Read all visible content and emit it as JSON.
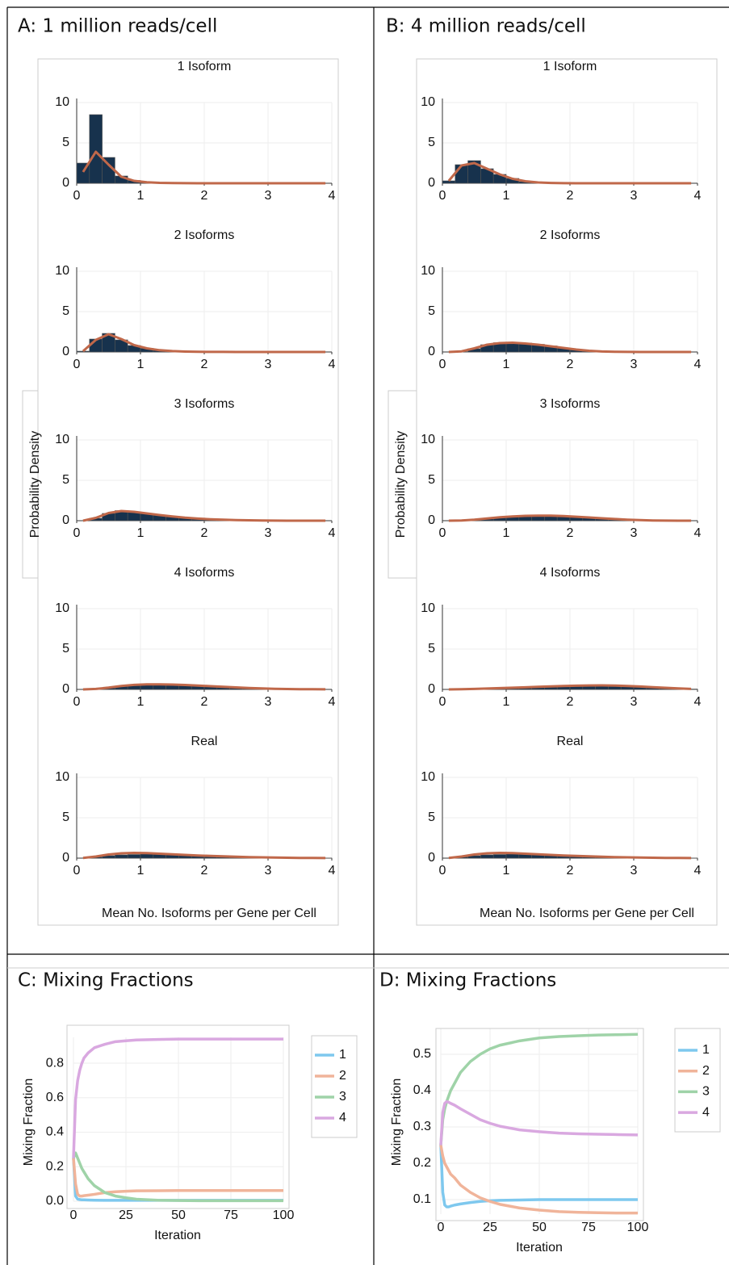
{
  "panels": [
    {
      "title": "A: 1 million reads/cell",
      "ylabel": "Probability Density",
      "xlabel": "Mean No. Isoforms per Gene per Cell"
    },
    {
      "title": "B: 4 million reads/cell",
      "ylabel": "Probability Density",
      "xlabel": "Mean No. Isoforms per Gene per Cell"
    }
  ],
  "chart_data": [
    {
      "type": "histogram",
      "title": "1 Isoform",
      "bins": [
        0,
        0.2,
        0.4,
        0.6,
        0.8,
        1,
        1.2,
        1.4,
        1.6,
        1.8,
        2,
        2.2,
        2.4,
        2.6,
        2.8,
        3,
        3.2,
        3.4,
        3.6,
        3.8,
        4
      ],
      "color": "#17324d",
      "values": [
        2.5,
        8.5,
        3.2,
        0.9,
        0.35,
        0.15,
        0.08,
        0.05,
        0,
        0,
        0,
        0,
        0,
        0,
        0,
        0,
        0,
        0,
        0,
        0
      ],
      "fit": {
        "color": "#c0684a",
        "values": [
          1.4,
          3.9,
          2.3,
          0.8,
          0.3,
          0.12,
          0.05,
          0.02,
          0.01,
          0,
          0,
          0,
          0,
          0,
          0,
          0,
          0,
          0,
          0,
          0
        ]
      },
      "xlim": [
        0,
        4
      ],
      "ylim": [
        0,
        10
      ],
      "xticks": [
        0,
        1,
        2,
        3,
        4
      ],
      "yticks": [
        0,
        5,
        10
      ]
    },
    {
      "type": "histogram",
      "title": "2 Isoforms",
      "bins": [
        0,
        0.2,
        0.4,
        0.6,
        0.8,
        1,
        1.2,
        1.4,
        1.6,
        1.8,
        2,
        2.2,
        2.4,
        2.6,
        2.8,
        3,
        3.2,
        3.4,
        3.6,
        3.8,
        4
      ],
      "color": "#17324d",
      "values": [
        0.1,
        1.6,
        2.3,
        1.5,
        0.8,
        0.45,
        0.25,
        0.12,
        0.06,
        0.03,
        0,
        0,
        0,
        0,
        0,
        0,
        0,
        0,
        0,
        0
      ],
      "fit": {
        "color": "#c0684a",
        "values": [
          0.1,
          1.5,
          2.2,
          1.6,
          0.85,
          0.45,
          0.22,
          0.11,
          0.05,
          0.02,
          0.01,
          0.01,
          0,
          0,
          0,
          0,
          0,
          0,
          0,
          0
        ]
      },
      "xlim": [
        0,
        4
      ],
      "ylim": [
        0,
        10
      ],
      "xticks": [
        0,
        1,
        2,
        3,
        4
      ],
      "yticks": [
        0,
        5,
        10
      ]
    },
    {
      "type": "histogram",
      "title": "3 Isoforms",
      "bins": [
        0,
        0.2,
        0.4,
        0.6,
        0.8,
        1,
        1.2,
        1.4,
        1.6,
        1.8,
        2,
        2.2,
        2.4,
        2.6,
        2.8,
        3,
        3.2,
        3.4,
        3.6,
        3.8,
        4
      ],
      "color": "#17324d",
      "values": [
        0,
        0.3,
        0.9,
        1.25,
        1.1,
        0.9,
        0.7,
        0.5,
        0.35,
        0.25,
        0.18,
        0.12,
        0.08,
        0.05,
        0.02,
        0,
        0,
        0,
        0,
        0
      ],
      "fit": {
        "color": "#c0684a",
        "values": [
          0,
          0.35,
          0.95,
          1.2,
          1.1,
          0.9,
          0.7,
          0.52,
          0.37,
          0.26,
          0.18,
          0.12,
          0.08,
          0.05,
          0.03,
          0.01,
          0,
          0,
          0,
          0
        ]
      },
      "xlim": [
        0,
        4
      ],
      "ylim": [
        0,
        10
      ],
      "xticks": [
        0,
        1,
        2,
        3,
        4
      ],
      "yticks": [
        0,
        5,
        10
      ]
    },
    {
      "type": "histogram",
      "title": "4 Isoforms",
      "bins": [
        0,
        0.2,
        0.4,
        0.6,
        0.8,
        1,
        1.2,
        1.4,
        1.6,
        1.8,
        2,
        2.2,
        2.4,
        2.6,
        2.8,
        3,
        3.2,
        3.4,
        3.6,
        3.8,
        4
      ],
      "color": "#17324d",
      "values": [
        0,
        0.05,
        0.2,
        0.4,
        0.55,
        0.6,
        0.62,
        0.6,
        0.55,
        0.48,
        0.4,
        0.32,
        0.25,
        0.18,
        0.12,
        0.08,
        0.05,
        0.03,
        0.02,
        0
      ],
      "fit": {
        "color": "#c0684a",
        "values": [
          0,
          0.06,
          0.22,
          0.42,
          0.56,
          0.62,
          0.63,
          0.6,
          0.55,
          0.48,
          0.4,
          0.32,
          0.25,
          0.18,
          0.12,
          0.08,
          0.05,
          0.03,
          0.02,
          0.01
        ]
      },
      "xlim": [
        0,
        4
      ],
      "ylim": [
        0,
        10
      ],
      "xticks": [
        0,
        1,
        2,
        3,
        4
      ],
      "yticks": [
        0,
        5,
        10
      ]
    },
    {
      "type": "histogram",
      "title": "Real",
      "bins": [
        0,
        0.2,
        0.4,
        0.6,
        0.8,
        1,
        1.2,
        1.4,
        1.6,
        1.8,
        2,
        2.2,
        2.4,
        2.6,
        2.8,
        3,
        3.2,
        3.4,
        3.6,
        3.8,
        4
      ],
      "color": "#17324d",
      "values": [
        0,
        0.15,
        0.3,
        0.4,
        0.45,
        0.5,
        0.5,
        0.48,
        0.45,
        0.4,
        0.35,
        0.3,
        0.25,
        0.2,
        0.15,
        0.12,
        0.08,
        0.05,
        0.03,
        0.02
      ],
      "fit": {
        "color": "#c0684a",
        "values": [
          0.02,
          0.2,
          0.45,
          0.6,
          0.65,
          0.62,
          0.55,
          0.47,
          0.4,
          0.33,
          0.27,
          0.22,
          0.17,
          0.13,
          0.1,
          0.07,
          0.05,
          0.03,
          0.02,
          0.01
        ]
      },
      "xlim": [
        0,
        4
      ],
      "ylim": [
        0,
        10
      ],
      "xticks": [
        0,
        1,
        2,
        3,
        4
      ],
      "yticks": [
        0,
        5,
        10
      ]
    },
    {
      "type": "histogram",
      "title": "1 Isoform",
      "bins": [
        0,
        0.2,
        0.4,
        0.6,
        0.8,
        1,
        1.2,
        1.4,
        1.6,
        1.8,
        2,
        2.2,
        2.4,
        2.6,
        2.8,
        3,
        3.2,
        3.4,
        3.6,
        3.8,
        4
      ],
      "color": "#17324d",
      "values": [
        0.3,
        2.3,
        2.8,
        1.8,
        1.1,
        0.6,
        0.2,
        0.05,
        0,
        0,
        0,
        0,
        0,
        0,
        0,
        0,
        0,
        0,
        0,
        0
      ],
      "fit": {
        "color": "#c0684a",
        "values": [
          0.3,
          2.2,
          2.5,
          1.8,
          1.1,
          0.55,
          0.25,
          0.1,
          0.04,
          0.01,
          0,
          0,
          0,
          0,
          0,
          0,
          0,
          0,
          0,
          0
        ]
      },
      "xlim": [
        0,
        4
      ],
      "ylim": [
        0,
        10
      ],
      "xticks": [
        0,
        1,
        2,
        3,
        4
      ],
      "yticks": [
        0,
        5,
        10
      ]
    },
    {
      "type": "histogram",
      "title": "2 Isoforms",
      "bins": [
        0,
        0.2,
        0.4,
        0.6,
        0.8,
        1,
        1.2,
        1.4,
        1.6,
        1.8,
        2,
        2.2,
        2.4,
        2.6,
        2.8,
        3,
        3.2,
        3.4,
        3.6,
        3.8,
        4
      ],
      "color": "#17324d",
      "values": [
        0,
        0.05,
        0.4,
        0.9,
        1.15,
        1.15,
        1.1,
        0.95,
        0.75,
        0.5,
        0.25,
        0.1,
        0.03,
        0,
        0,
        0,
        0,
        0,
        0,
        0
      ],
      "fit": {
        "color": "#c0684a",
        "values": [
          0,
          0.08,
          0.45,
          0.9,
          1.1,
          1.15,
          1.05,
          0.9,
          0.7,
          0.5,
          0.3,
          0.15,
          0.06,
          0.02,
          0.01,
          0,
          0,
          0,
          0,
          0
        ]
      },
      "xlim": [
        0,
        4
      ],
      "ylim": [
        0,
        10
      ],
      "xticks": [
        0,
        1,
        2,
        3,
        4
      ],
      "yticks": [
        0,
        5,
        10
      ]
    },
    {
      "type": "histogram",
      "title": "3 Isoforms",
      "bins": [
        0,
        0.2,
        0.4,
        0.6,
        0.8,
        1,
        1.2,
        1.4,
        1.6,
        1.8,
        2,
        2.2,
        2.4,
        2.6,
        2.8,
        3,
        3.2,
        3.4,
        3.6,
        3.8,
        4
      ],
      "color": "#17324d",
      "values": [
        0,
        0.02,
        0.1,
        0.25,
        0.4,
        0.5,
        0.6,
        0.65,
        0.65,
        0.6,
        0.5,
        0.4,
        0.3,
        0.2,
        0.12,
        0.06,
        0.03,
        0.01,
        0,
        0
      ],
      "fit": {
        "color": "#c0684a",
        "values": [
          0,
          0.03,
          0.12,
          0.27,
          0.42,
          0.53,
          0.6,
          0.63,
          0.62,
          0.57,
          0.49,
          0.4,
          0.3,
          0.21,
          0.13,
          0.07,
          0.03,
          0.01,
          0,
          0
        ]
      },
      "xlim": [
        0,
        4
      ],
      "ylim": [
        0,
        10
      ],
      "xticks": [
        0,
        1,
        2,
        3,
        4
      ],
      "yticks": [
        0,
        5,
        10
      ]
    },
    {
      "type": "histogram",
      "title": "4 Isoforms",
      "bins": [
        0,
        0.2,
        0.4,
        0.6,
        0.8,
        1,
        1.2,
        1.4,
        1.6,
        1.8,
        2,
        2.2,
        2.4,
        2.6,
        2.8,
        3,
        3.2,
        3.4,
        3.6,
        3.8,
        4
      ],
      "color": "#17324d",
      "values": [
        0,
        0.01,
        0.05,
        0.1,
        0.15,
        0.2,
        0.25,
        0.3,
        0.35,
        0.4,
        0.45,
        0.5,
        0.5,
        0.48,
        0.42,
        0.35,
        0.28,
        0.2,
        0.12,
        0.05
      ],
      "fit": {
        "color": "#c0684a",
        "values": [
          0,
          0.02,
          0.06,
          0.11,
          0.16,
          0.21,
          0.26,
          0.32,
          0.37,
          0.42,
          0.46,
          0.49,
          0.5,
          0.48,
          0.43,
          0.36,
          0.28,
          0.2,
          0.12,
          0.06
        ]
      },
      "xlim": [
        0,
        4
      ],
      "ylim": [
        0,
        10
      ],
      "xticks": [
        0,
        1,
        2,
        3,
        4
      ],
      "yticks": [
        0,
        5,
        10
      ]
    },
    {
      "type": "histogram",
      "title": "Real",
      "bins": [
        0,
        0.2,
        0.4,
        0.6,
        0.8,
        1,
        1.2,
        1.4,
        1.6,
        1.8,
        2,
        2.2,
        2.4,
        2.6,
        2.8,
        3,
        3.2,
        3.4,
        3.6,
        3.8,
        4
      ],
      "color": "#17324d",
      "values": [
        0,
        0.15,
        0.3,
        0.4,
        0.45,
        0.5,
        0.5,
        0.48,
        0.45,
        0.4,
        0.35,
        0.3,
        0.25,
        0.2,
        0.15,
        0.12,
        0.08,
        0.05,
        0.03,
        0.02
      ],
      "fit": {
        "color": "#c0684a",
        "values": [
          0.02,
          0.2,
          0.45,
          0.6,
          0.65,
          0.62,
          0.55,
          0.47,
          0.4,
          0.33,
          0.27,
          0.22,
          0.17,
          0.13,
          0.1,
          0.07,
          0.05,
          0.03,
          0.02,
          0.01
        ]
      },
      "xlim": [
        0,
        4
      ],
      "ylim": [
        0,
        10
      ],
      "xticks": [
        0,
        1,
        2,
        3,
        4
      ],
      "yticks": [
        0,
        5,
        10
      ]
    },
    {
      "type": "line",
      "title": "C: Mixing Fractions",
      "xlabel": "Iteration",
      "ylabel": "Mixing Fraction",
      "x": [
        0,
        1,
        2,
        3,
        4,
        5,
        7,
        10,
        15,
        20,
        25,
        30,
        40,
        50,
        60,
        70,
        80,
        90,
        100
      ],
      "series": [
        {
          "name": "1",
          "color": "#7ec8ee",
          "values": [
            0.25,
            0.03,
            0.012,
            0.01,
            0.008,
            0.008,
            0.007,
            0.006,
            0.005,
            0.005,
            0.005,
            0.005,
            0.005,
            0.005,
            0.005,
            0.005,
            0.005,
            0.005,
            0.005
          ]
        },
        {
          "name": "2",
          "color": "#f0b49a",
          "values": [
            0.25,
            0.1,
            0.04,
            0.03,
            0.03,
            0.032,
            0.035,
            0.04,
            0.05,
            0.055,
            0.058,
            0.06,
            0.061,
            0.062,
            0.062,
            0.062,
            0.062,
            0.062,
            0.062
          ]
        },
        {
          "name": "3",
          "color": "#9fd3a8",
          "values": [
            0.25,
            0.28,
            0.25,
            0.22,
            0.19,
            0.17,
            0.13,
            0.09,
            0.05,
            0.03,
            0.02,
            0.012,
            0.006,
            0.004,
            0.003,
            0.003,
            0.003,
            0.003,
            0.003
          ]
        },
        {
          "name": "4",
          "color": "#d9a8e0",
          "values": [
            0.25,
            0.59,
            0.7,
            0.76,
            0.8,
            0.83,
            0.86,
            0.89,
            0.91,
            0.925,
            0.93,
            0.935,
            0.938,
            0.94,
            0.94,
            0.94,
            0.94,
            0.94,
            0.94
          ]
        }
      ],
      "xlim": [
        0,
        100
      ],
      "ylim": [
        0,
        0.95
      ],
      "xticks": [
        0,
        25,
        50,
        75,
        100
      ],
      "yticks": [
        {
          "value": 0,
          "label": "0.0"
        },
        0.2,
        0.4,
        0.6,
        0.8
      ],
      "grid": true
    },
    {
      "type": "line",
      "title": "D: Mixing Fractions",
      "xlabel": "Iteration",
      "ylabel": "Mixing Fraction",
      "x": [
        0,
        1,
        2,
        3,
        4,
        5,
        7,
        10,
        15,
        20,
        25,
        30,
        40,
        50,
        60,
        70,
        80,
        90,
        100
      ],
      "series": [
        {
          "name": "1",
          "color": "#7ec8ee",
          "values": [
            0.25,
            0.12,
            0.085,
            0.08,
            0.08,
            0.082,
            0.085,
            0.088,
            0.092,
            0.095,
            0.097,
            0.098,
            0.099,
            0.1,
            0.1,
            0.1,
            0.1,
            0.1,
            0.1
          ]
        },
        {
          "name": "2",
          "color": "#f0b49a",
          "values": [
            0.25,
            0.22,
            0.2,
            0.19,
            0.18,
            0.17,
            0.16,
            0.14,
            0.12,
            0.105,
            0.095,
            0.087,
            0.077,
            0.071,
            0.067,
            0.065,
            0.064,
            0.063,
            0.063
          ]
        },
        {
          "name": "3",
          "color": "#9fd3a8",
          "values": [
            0.25,
            0.32,
            0.35,
            0.37,
            0.385,
            0.4,
            0.42,
            0.45,
            0.48,
            0.5,
            0.515,
            0.525,
            0.537,
            0.545,
            0.549,
            0.551,
            0.553,
            0.554,
            0.555
          ]
        },
        {
          "name": "4",
          "color": "#d9a8e0",
          "values": [
            0.25,
            0.34,
            0.365,
            0.37,
            0.368,
            0.365,
            0.36,
            0.35,
            0.335,
            0.32,
            0.31,
            0.302,
            0.292,
            0.287,
            0.283,
            0.281,
            0.28,
            0.279,
            0.278
          ]
        }
      ],
      "xlim": [
        0,
        100
      ],
      "ylim": [
        0.06,
        0.57
      ],
      "xticks": [
        0,
        25,
        50,
        75,
        100
      ],
      "yticks": [
        0.1,
        0.2,
        0.3,
        0.4,
        0.5
      ],
      "grid": true
    }
  ]
}
